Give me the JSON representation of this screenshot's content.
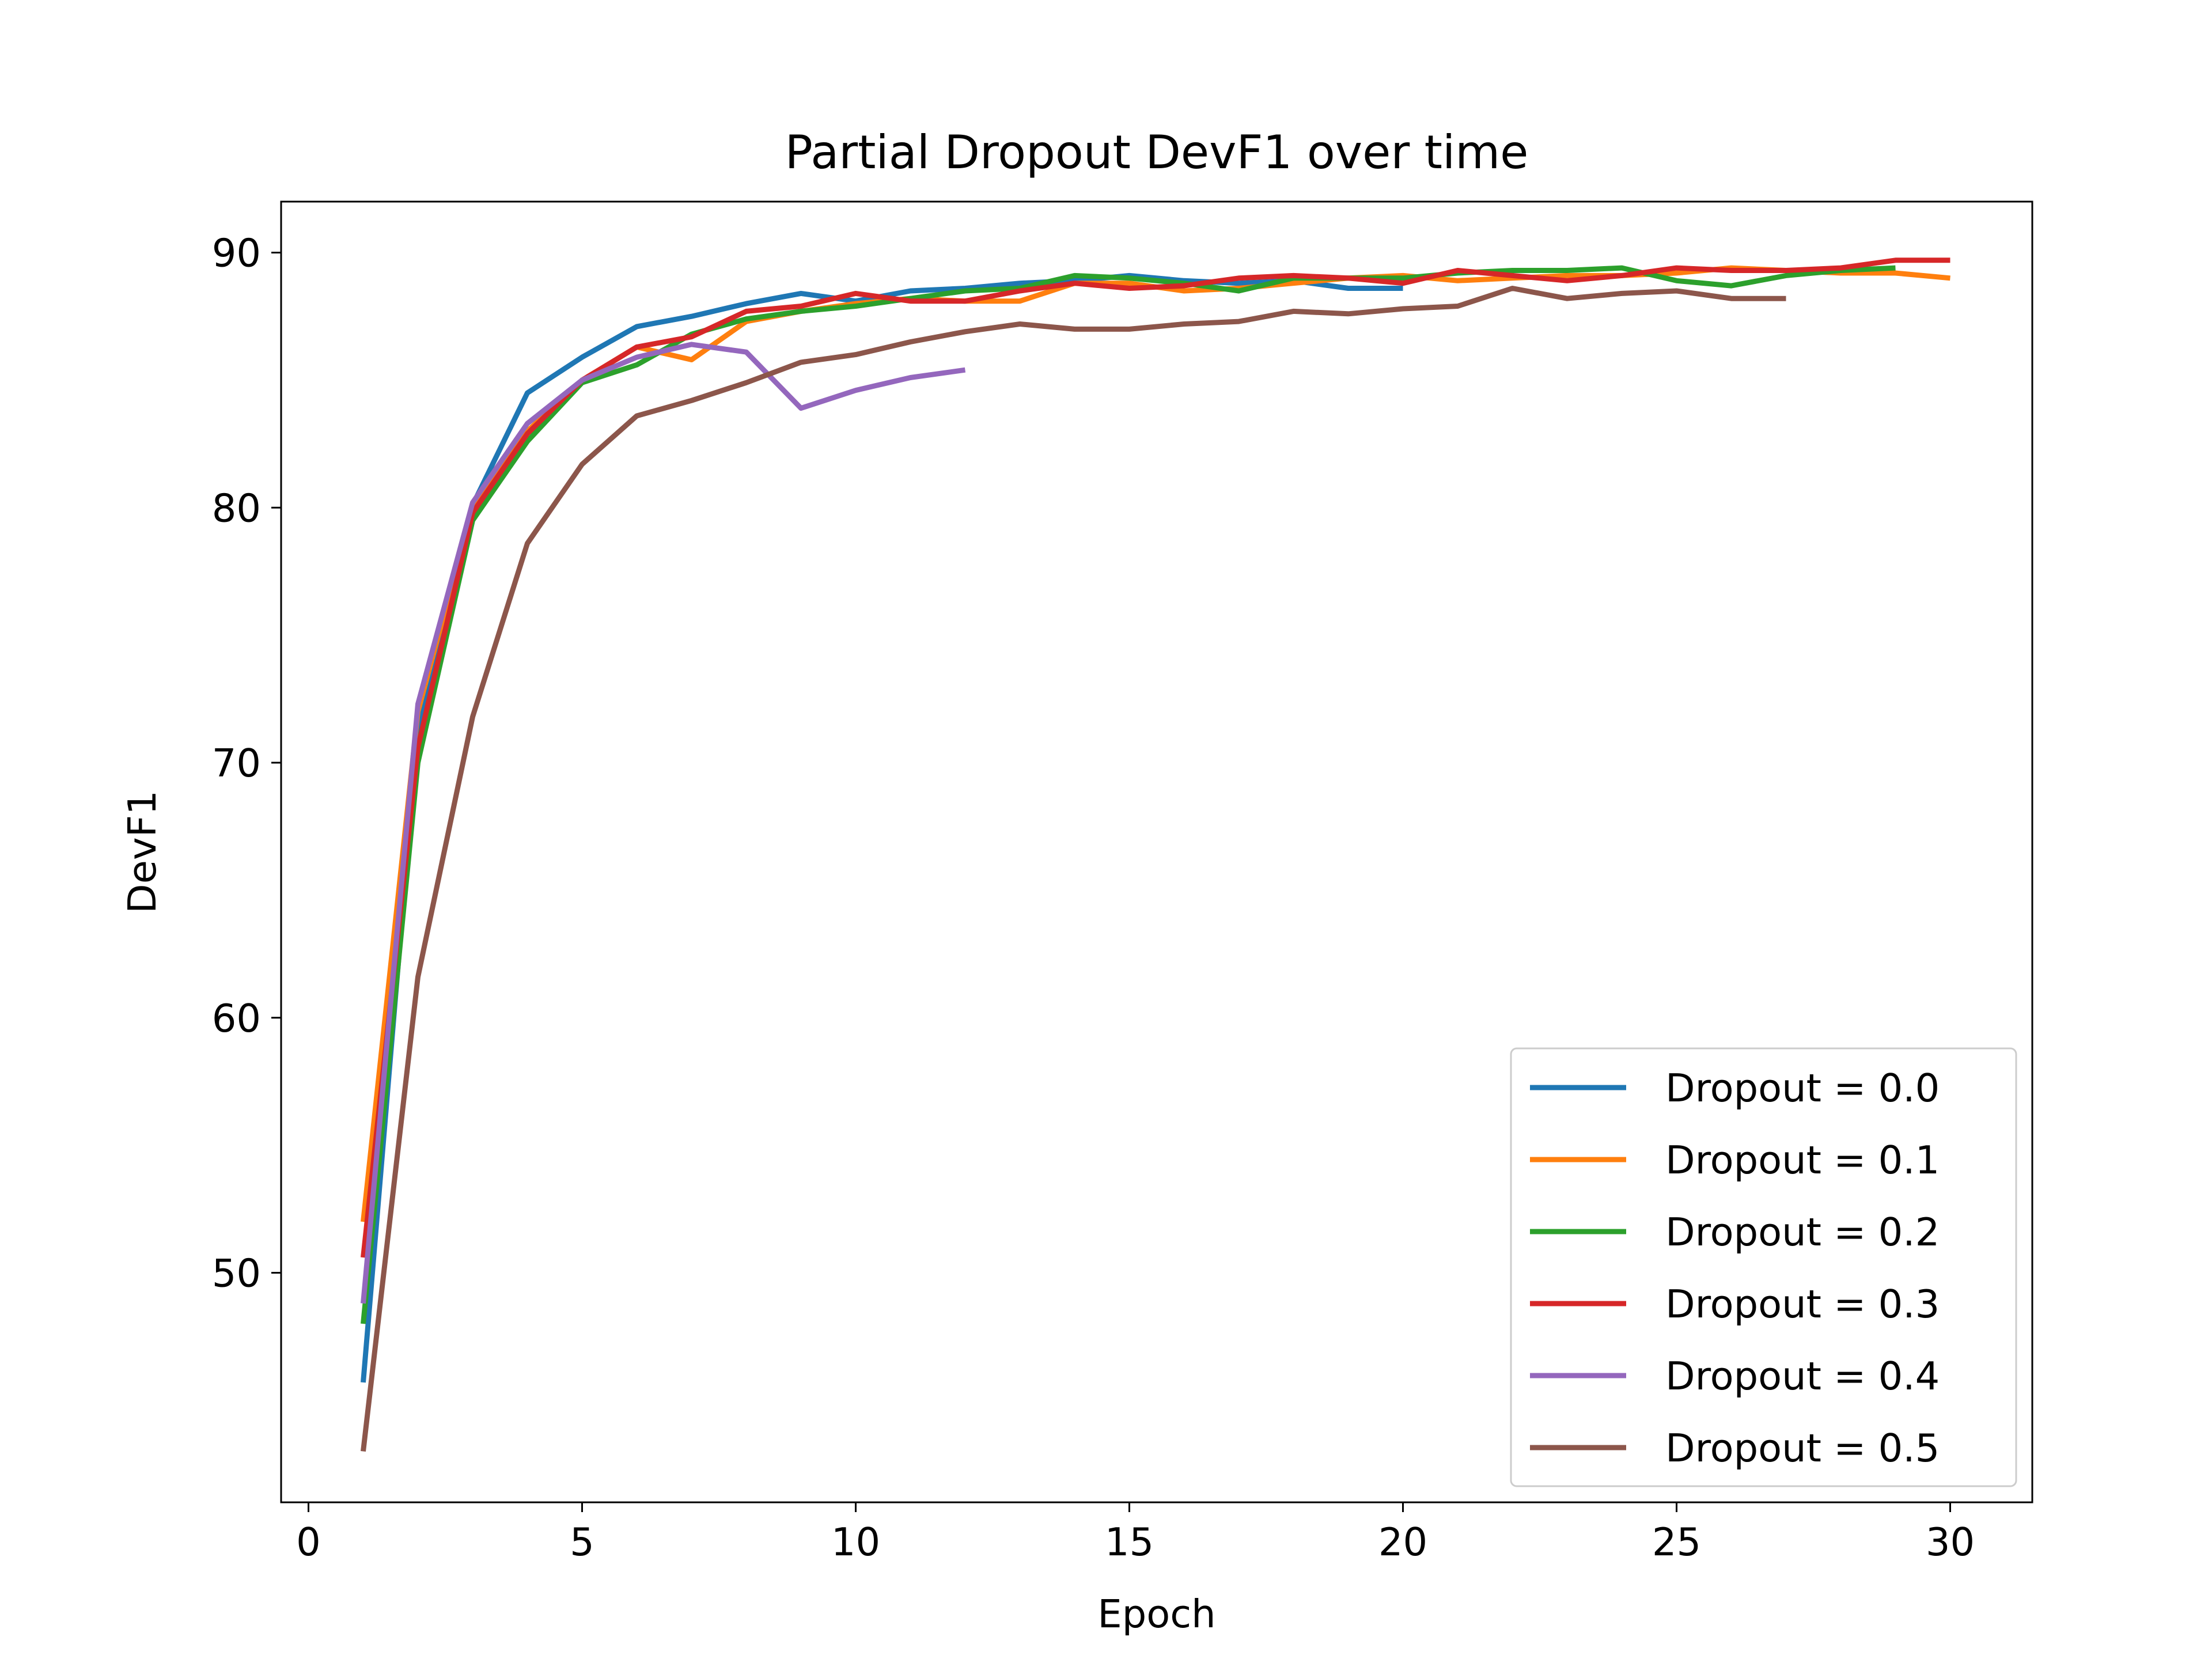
{
  "chart_data": {
    "type": "line",
    "title": "Partial Dropout DevF1 over time",
    "xlabel": "Epoch",
    "ylabel": "DevF1",
    "xlim": [
      -0.5,
      31.5
    ],
    "ylim": [
      41,
      92
    ],
    "xticks": [
      0,
      5,
      10,
      15,
      20,
      25,
      30
    ],
    "yticks": [
      50,
      60,
      70,
      80,
      90
    ],
    "grid": false,
    "legend_position": "lower right",
    "series": [
      {
        "name": "Dropout = 0.0",
        "color": "#1f77b4",
        "x": [
          1,
          2,
          3,
          4,
          5,
          6,
          7,
          8,
          9,
          10,
          11,
          12,
          13,
          14,
          15,
          16,
          17,
          18,
          19,
          20
        ],
        "y": [
          45.7,
          71.3,
          80.1,
          84.5,
          85.9,
          87.1,
          87.5,
          88.0,
          88.4,
          88.1,
          88.5,
          88.6,
          88.8,
          88.9,
          89.1,
          88.9,
          88.8,
          88.9,
          88.6,
          88.6
        ]
      },
      {
        "name": "Dropout = 0.1",
        "color": "#ff7f0e",
        "x": [
          1,
          2,
          3,
          4,
          5,
          6,
          7,
          8,
          9,
          10,
          11,
          12,
          13,
          14,
          15,
          16,
          17,
          18,
          19,
          20,
          21,
          22,
          23,
          24,
          25,
          26,
          27,
          28,
          29,
          30
        ],
        "y": [
          52.0,
          72.0,
          80.0,
          83.0,
          85.0,
          86.3,
          85.8,
          87.3,
          87.7,
          88.0,
          88.2,
          88.1,
          88.1,
          88.8,
          88.8,
          88.5,
          88.6,
          88.8,
          89.0,
          89.1,
          88.9,
          89.0,
          89.1,
          89.1,
          89.2,
          89.4,
          89.3,
          89.2,
          89.2,
          89.0
        ]
      },
      {
        "name": "Dropout = 0.2",
        "color": "#2ca02c",
        "x": [
          1,
          2,
          3,
          4,
          5,
          6,
          7,
          8,
          9,
          10,
          11,
          12,
          13,
          14,
          15,
          16,
          17,
          18,
          19,
          20,
          21,
          22,
          23,
          24,
          25,
          26,
          27,
          28,
          29
        ],
        "y": [
          48.0,
          70.0,
          79.5,
          82.6,
          84.9,
          85.6,
          86.8,
          87.4,
          87.7,
          87.9,
          88.2,
          88.5,
          88.6,
          89.1,
          89.0,
          88.8,
          88.5,
          89.0,
          89.0,
          89.0,
          89.2,
          89.3,
          89.3,
          89.4,
          88.9,
          88.7,
          89.1,
          89.3,
          89.4
        ]
      },
      {
        "name": "Dropout = 0.3",
        "color": "#d62728",
        "x": [
          1,
          2,
          3,
          4,
          5,
          6,
          7,
          8,
          9,
          10,
          11,
          12,
          13,
          14,
          15,
          16,
          17,
          18,
          19,
          20,
          21,
          22,
          23,
          24,
          25,
          26,
          27,
          28,
          29,
          30
        ],
        "y": [
          50.6,
          70.6,
          79.8,
          82.9,
          85.0,
          86.3,
          86.7,
          87.7,
          87.9,
          88.4,
          88.1,
          88.1,
          88.5,
          88.8,
          88.6,
          88.7,
          89.0,
          89.1,
          89.0,
          88.8,
          89.3,
          89.1,
          88.9,
          89.1,
          89.4,
          89.3,
          89.3,
          89.4,
          89.7,
          89.7
        ]
      },
      {
        "name": "Dropout = 0.4",
        "color": "#9467bd",
        "x": [
          1,
          2,
          3,
          4,
          5,
          6,
          7,
          8,
          9,
          10,
          11,
          12
        ],
        "y": [
          48.8,
          72.3,
          80.2,
          83.3,
          85.0,
          85.9,
          86.4,
          86.1,
          83.9,
          84.6,
          85.1,
          85.4
        ]
      },
      {
        "name": "Dropout = 0.5",
        "color": "#8c564b",
        "x": [
          1,
          2,
          3,
          4,
          5,
          6,
          7,
          8,
          9,
          10,
          11,
          12,
          13,
          14,
          15,
          16,
          17,
          18,
          19,
          20,
          21,
          22,
          23,
          24,
          25,
          26,
          27
        ],
        "y": [
          43.0,
          61.6,
          71.8,
          78.6,
          81.7,
          83.6,
          84.2,
          84.9,
          85.7,
          86.0,
          86.5,
          86.9,
          87.2,
          87.0,
          87.0,
          87.2,
          87.3,
          87.7,
          87.6,
          87.8,
          87.9,
          88.6,
          88.2,
          88.4,
          88.5,
          88.2,
          88.2
        ]
      }
    ]
  }
}
